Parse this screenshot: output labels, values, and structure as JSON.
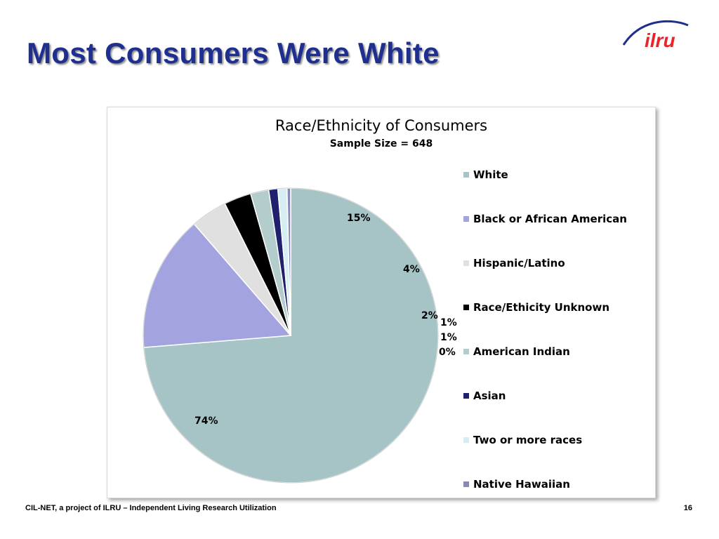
{
  "slide": {
    "title": "Most Consumers Were White",
    "logo_text": "ilru",
    "footer": "CIL-NET, a project of ILRU – Independent Living Research Utilization",
    "page_number": "16",
    "accent_color": "#1f2f8f"
  },
  "chart_data": {
    "type": "pie",
    "title": "Race/Ethnicity of Consumers",
    "subtitle": "Sample Size = 648",
    "legend_position": "right",
    "slices": [
      {
        "name": "White",
        "value": 74,
        "label": "74%",
        "color": "#a6c4c6"
      },
      {
        "name": "Black or African American",
        "value": 15,
        "label": "15%",
        "color": "#a3a3e0"
      },
      {
        "name": "Hispanic/Latino",
        "value": 4,
        "label": "4%",
        "color": "#e0e0e0"
      },
      {
        "name": "Race/Ethicity Unknown",
        "value": 3,
        "label": "",
        "color": "#000000"
      },
      {
        "name": "American Indian",
        "value": 2,
        "label": "2%",
        "color": "#b3cccc"
      },
      {
        "name": "Asian",
        "value": 1,
        "label": "1%",
        "color": "#20206e"
      },
      {
        "name": "Two or more races",
        "value": 1,
        "label": "1%",
        "color": "#d6eef2"
      },
      {
        "name": "Native Hawaiian",
        "value": 0.4,
        "label": "0%",
        "color": "#8a8ab8"
      }
    ]
  }
}
